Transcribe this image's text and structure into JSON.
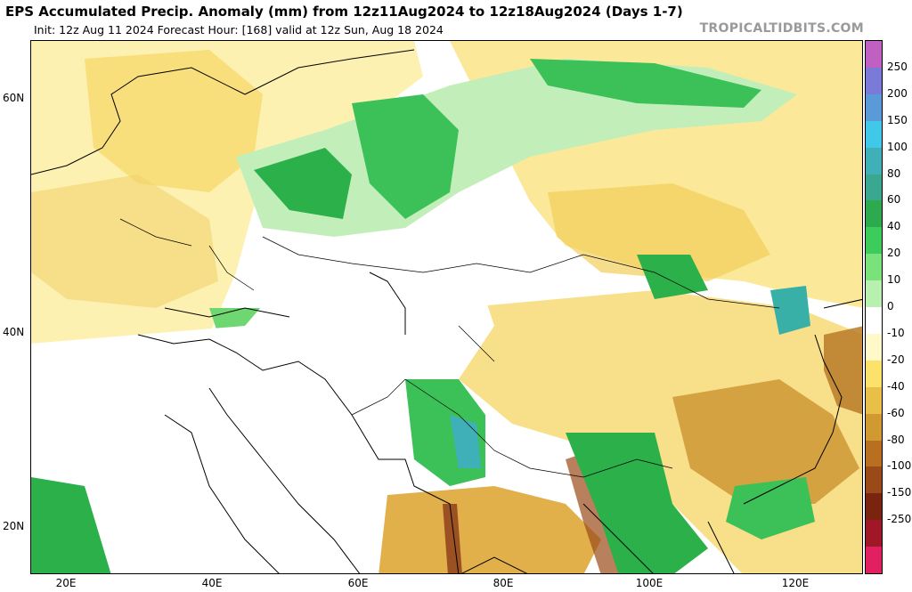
{
  "title": "EPS Accumulated Precip. Anomaly (mm) from 12z11Aug2024 to 12z18Aug2024 (Days 1-7)",
  "subtitle": "Init: 12z Aug 11 2024   Forecast Hour: [168]   valid at 12z Sun, Aug 18 2024",
  "brand": "TROPICALTIDBITS.COM",
  "lat_ticks": [
    "60N",
    "40N",
    "20N"
  ],
  "lon_ticks": [
    "20E",
    "40E",
    "60E",
    "80E",
    "100E",
    "120E"
  ],
  "colorbar": {
    "labels": [
      "250",
      "200",
      "150",
      "100",
      "80",
      "60",
      "40",
      "20",
      "10",
      "0",
      "-10",
      "-20",
      "-40",
      "-60",
      "-80",
      "-100",
      "-150",
      "-250"
    ],
    "colors": [
      "#c060c0",
      "#7a7ad8",
      "#5b9ad8",
      "#40c8e8",
      "#40b0b8",
      "#3aa890",
      "#2eaa4e",
      "#3ccc5c",
      "#7ae27a",
      "#b8f0b0",
      "#ffffff",
      "#fff8c8",
      "#fce26a",
      "#e8c048",
      "#d09a30",
      "#b86f20",
      "#9a4a18",
      "#7a2410",
      "#a01828",
      "#e02060"
    ]
  },
  "map_colors": {
    "dry_light": "#fdf1b2",
    "dry_mid": "#f6d86a",
    "dry_strong": "#d8a23c",
    "dry_brown": "#a8651f",
    "dry_dark": "#7a2a12",
    "wet_light": "#c2eeba",
    "wet_mid": "#6ed772",
    "wet_strong": "#2bb04a",
    "wet_teal": "#38b0a8"
  }
}
